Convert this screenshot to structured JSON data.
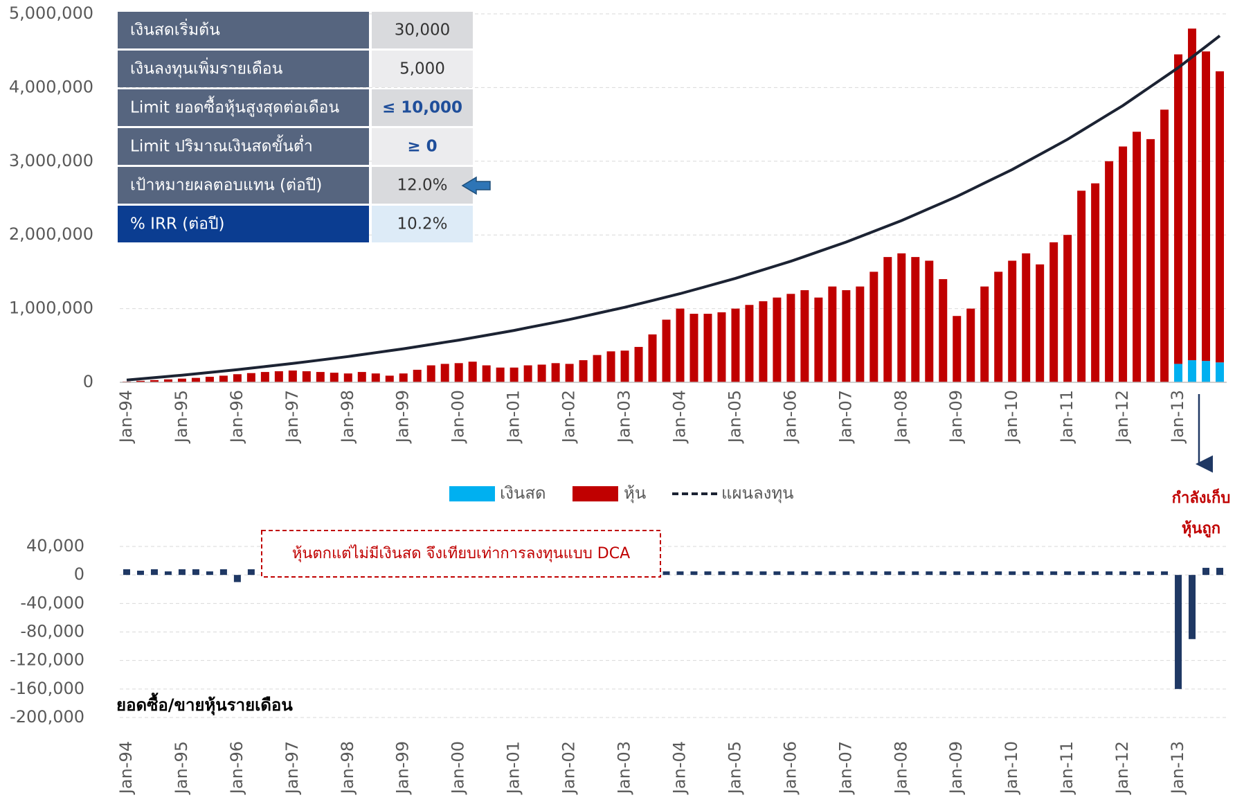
{
  "table": {
    "rows": [
      [
        "เงินสดเริ่มต้น",
        "30,000"
      ],
      [
        "เงินลงทุนเพิ่มรายเดือน",
        "5,000"
      ],
      [
        "Limit ยอดซื้อหุ้นสูงสุดต่อเดือน",
        "≤ 10,000"
      ],
      [
        "Limit ปริมาณเงินสดขั้นต่ำ",
        "≥ 0"
      ],
      [
        "เป้าหมายผลตอบแทน (ต่อปี)",
        "12.0%"
      ],
      [
        "% IRR (ต่อปี)",
        "10.2%"
      ]
    ]
  },
  "chart_data": [
    {
      "type": "combo",
      "stacked": true,
      "grid": true,
      "categories": [
        "Jan-94",
        null,
        null,
        null,
        "Jan-95",
        null,
        null,
        null,
        "Jan-96",
        null,
        null,
        null,
        "Jan-97",
        null,
        null,
        null,
        "Jan-98",
        null,
        null,
        null,
        "Jan-99",
        null,
        null,
        null,
        "Jan-00",
        null,
        null,
        null,
        "Jan-01",
        null,
        null,
        null,
        "Jan-02",
        null,
        null,
        null,
        "Jan-03",
        null,
        null,
        null,
        "Jan-04",
        null,
        null,
        null,
        "Jan-05",
        null,
        null,
        null,
        "Jan-06",
        null,
        null,
        null,
        "Jan-07",
        null,
        null,
        null,
        "Jan-08",
        null,
        null,
        null,
        "Jan-09",
        null,
        null,
        null,
        "Jan-10",
        null,
        null,
        null,
        "Jan-11",
        null,
        null,
        null,
        "Jan-12",
        null,
        null,
        null,
        "Jan-13",
        null,
        null,
        null
      ],
      "ylim": [
        0,
        5000000
      ],
      "yticks": [
        0,
        {
          "value": 1000000,
          "label": "1,000,000"
        },
        {
          "value": 2000000,
          "label": "2,000,000"
        },
        {
          "value": 3000000,
          "label": "3,000,000"
        },
        {
          "value": 4000000,
          "label": "4,000,000"
        },
        {
          "value": 5000000,
          "label": "5,000,000"
        }
      ],
      "series": [
        {
          "name": "เงินสด",
          "kind": "bar",
          "color": "#00b0f0",
          "values": [
            0,
            0,
            0,
            0,
            0,
            0,
            0,
            0,
            0,
            0,
            0,
            0,
            0,
            0,
            0,
            0,
            0,
            0,
            0,
            0,
            0,
            0,
            0,
            0,
            0,
            0,
            0,
            0,
            0,
            0,
            0,
            0,
            0,
            0,
            0,
            0,
            0,
            0,
            0,
            0,
            0,
            0,
            0,
            0,
            0,
            0,
            0,
            0,
            0,
            0,
            0,
            0,
            0,
            0,
            0,
            0,
            0,
            0,
            0,
            0,
            0,
            0,
            0,
            0,
            0,
            0,
            0,
            0,
            0,
            0,
            0,
            0,
            0,
            0,
            0,
            0,
            250000,
            300000,
            290000,
            270000
          ]
        },
        {
          "name": "หุ้น",
          "kind": "bar",
          "color": "#c00000",
          "values": [
            10000,
            20000,
            30000,
            40000,
            50000,
            60000,
            75000,
            90000,
            110000,
            125000,
            140000,
            150000,
            160000,
            150000,
            140000,
            130000,
            120000,
            140000,
            120000,
            90000,
            120000,
            170000,
            230000,
            250000,
            260000,
            280000,
            230000,
            200000,
            200000,
            230000,
            240000,
            260000,
            250000,
            300000,
            370000,
            420000,
            430000,
            480000,
            650000,
            850000,
            1000000,
            930000,
            930000,
            950000,
            1000000,
            1050000,
            1100000,
            1150000,
            1200000,
            1250000,
            1150000,
            1300000,
            1250000,
            1300000,
            1500000,
            1700000,
            1750000,
            1700000,
            1650000,
            1400000,
            900000,
            1000000,
            1300000,
            1500000,
            1650000,
            1750000,
            1600000,
            1900000,
            2000000,
            2600000,
            2700000,
            3000000,
            3200000,
            3400000,
            3300000,
            3700000,
            4200000,
            4500000,
            4200000,
            3950000
          ]
        },
        {
          "name": "แผนลงทุน",
          "kind": "line",
          "color": "#1c2333",
          "values": [
            30000,
            46700,
            63400,
            80100,
            96800,
            115500,
            134200,
            153000,
            171700,
            192600,
            213600,
            234500,
            255500,
            279000,
            302400,
            325900,
            349300,
            375600,
            401900,
            428200,
            454600,
            484000,
            513500,
            542900,
            572400,
            605400,
            638400,
            671300,
            704300,
            741200,
            778200,
            815100,
            852100,
            893400,
            934800,
            976100,
            1017500,
            1063800,
            1110200,
            1156500,
            1202900,
            1254800,
            1306700,
            1358600,
            1410500,
            1468600,
            1526700,
            1584800,
            1642900,
            1708000,
            1773100,
            1838200,
            1903300,
            1976200,
            2049100,
            2122000,
            2194900,
            2276600,
            2358300,
            2439900,
            2521600,
            2613100,
            2704500,
            2796000,
            2887400,
            2989800,
            3092300,
            3194700,
            3297100,
            3411800,
            3526500,
            3641300,
            3756000,
            3884500,
            4013000,
            4141500,
            4270000,
            4413900,
            4557700,
            4701600
          ]
        }
      ],
      "annotation": [
        "กำลังเก็บ",
        "หุ้นถูก"
      ]
    },
    {
      "type": "bar",
      "grid": true,
      "title": "ยอดซื้อ/ขายหุ้นรายเดือน",
      "color": "#1f3864",
      "categories": [
        "Jan-94",
        null,
        null,
        null,
        "Jan-95",
        null,
        null,
        null,
        "Jan-96",
        null,
        null,
        null,
        "Jan-97",
        null,
        null,
        null,
        "Jan-98",
        null,
        null,
        null,
        "Jan-99",
        null,
        null,
        null,
        "Jan-00",
        null,
        null,
        null,
        "Jan-01",
        null,
        null,
        null,
        "Jan-02",
        null,
        null,
        null,
        "Jan-03",
        null,
        null,
        null,
        "Jan-04",
        null,
        null,
        null,
        "Jan-05",
        null,
        null,
        null,
        "Jan-06",
        null,
        null,
        null,
        "Jan-07",
        null,
        null,
        null,
        "Jan-08",
        null,
        null,
        null,
        "Jan-09",
        null,
        null,
        null,
        "Jan-10",
        null,
        null,
        null,
        "Jan-11",
        null,
        null,
        null,
        "Jan-12",
        null,
        null,
        null,
        "Jan-13",
        null,
        null,
        null
      ],
      "ylim": [
        -200000,
        40000
      ],
      "yticks": [
        {
          "value": 40000,
          "label": "40,000"
        },
        0,
        {
          "value": -40000,
          "label": "-40,000"
        },
        {
          "value": -80000,
          "label": "-80,000"
        },
        {
          "value": -120000,
          "label": "-120,000"
        },
        {
          "value": -160000,
          "label": "-160,000"
        },
        {
          "value": -200000,
          "label": "-200,000"
        }
      ],
      "values": [
        8000,
        6000,
        8000,
        5000,
        8000,
        8000,
        5000,
        8000,
        -10000,
        8000,
        5000,
        5000,
        5000,
        5000,
        5000,
        5000,
        5000,
        5000,
        5000,
        5000,
        5000,
        5000,
        5000,
        5000,
        5000,
        5000,
        5000,
        5000,
        5000,
        5000,
        5000,
        5000,
        5000,
        5000,
        5000,
        5000,
        5000,
        5000,
        5000,
        5000,
        5000,
        5000,
        5000,
        5000,
        5000,
        5000,
        5000,
        5000,
        5000,
        5000,
        5000,
        5000,
        5000,
        5000,
        5000,
        5000,
        5000,
        5000,
        5000,
        5000,
        5000,
        5000,
        5000,
        5000,
        5000,
        5000,
        5000,
        5000,
        5000,
        5000,
        5000,
        5000,
        5000,
        5000,
        5000,
        5000,
        -160000,
        -90000,
        10000,
        10000
      ],
      "annotation": "หุ้นตกแต่ไม่มีเงินสด จึงเทียบเท่าการลงทุนแบบ DCA"
    }
  ]
}
